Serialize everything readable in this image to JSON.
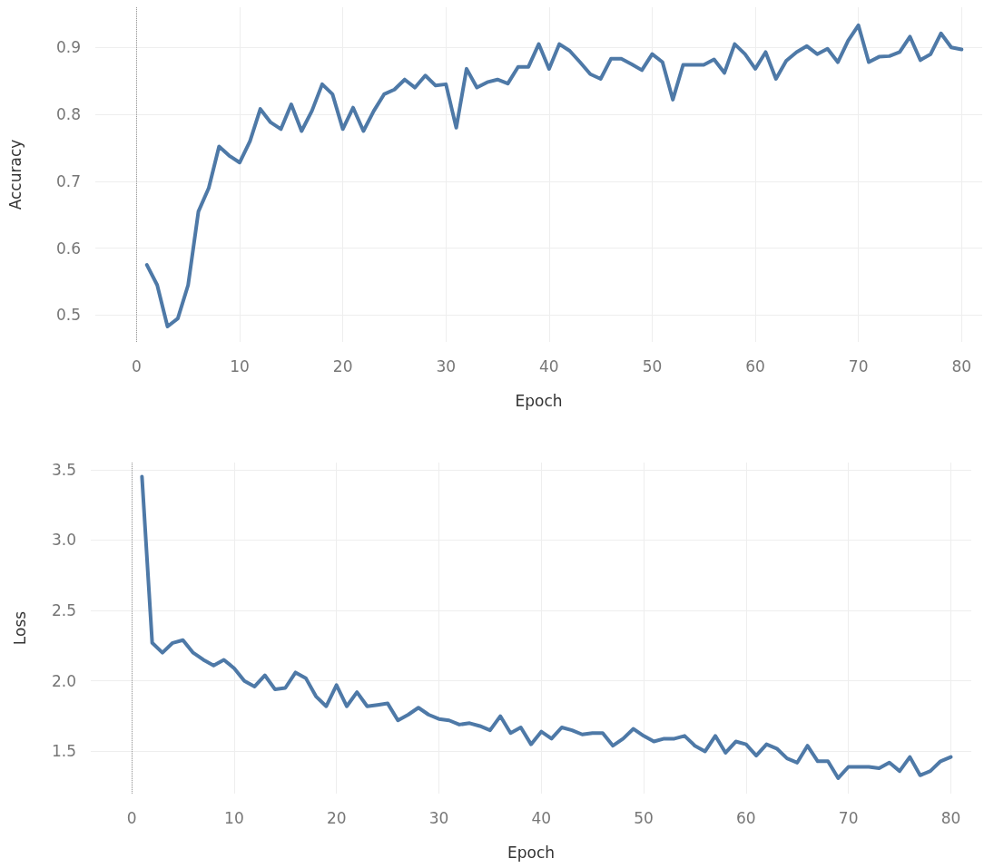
{
  "chart_data": [
    {
      "type": "line",
      "xlabel": "Epoch",
      "ylabel": "Accuracy",
      "grid": true,
      "line_style": "solid",
      "marker": "none",
      "x": [
        1,
        2,
        3,
        4,
        5,
        6,
        7,
        8,
        9,
        10,
        11,
        12,
        13,
        14,
        15,
        16,
        17,
        18,
        19,
        20,
        21,
        22,
        23,
        24,
        25,
        26,
        27,
        28,
        29,
        30,
        31,
        32,
        33,
        34,
        35,
        36,
        37,
        38,
        39,
        40,
        41,
        42,
        43,
        44,
        45,
        46,
        47,
        48,
        49,
        50,
        51,
        52,
        53,
        54,
        55,
        56,
        57,
        58,
        59,
        60,
        61,
        62,
        63,
        64,
        65,
        66,
        67,
        68,
        69,
        70,
        71,
        72,
        73,
        74,
        75,
        76,
        77,
        78,
        79,
        80
      ],
      "series": [
        {
          "color": "#4e79a7",
          "values": [
            0.575,
            0.545,
            0.483,
            0.495,
            0.545,
            0.655,
            0.69,
            0.752,
            0.738,
            0.728,
            0.76,
            0.808,
            0.788,
            0.778,
            0.815,
            0.775,
            0.805,
            0.845,
            0.83,
            0.778,
            0.81,
            0.775,
            0.805,
            0.83,
            0.837,
            0.852,
            0.84,
            0.858,
            0.843,
            0.845,
            0.78,
            0.868,
            0.84,
            0.848,
            0.852,
            0.846,
            0.871,
            0.871,
            0.905,
            0.868,
            0.905,
            0.895,
            0.878,
            0.86,
            0.853,
            0.883,
            0.883,
            0.875,
            0.866,
            0.89,
            0.878,
            0.822,
            0.874,
            0.874,
            0.874,
            0.882,
            0.862,
            0.905,
            0.89,
            0.868,
            0.893,
            0.853,
            0.88,
            0.893,
            0.902,
            0.89,
            0.898,
            0.878,
            0.91,
            0.933,
            0.878,
            0.886,
            0.887,
            0.893,
            0.916,
            0.881,
            0.89,
            0.921,
            0.9,
            0.897
          ]
        }
      ],
      "xlim": [
        -4,
        82
      ],
      "xticks": [
        0,
        10,
        20,
        30,
        40,
        50,
        60,
        70,
        80
      ],
      "ylim": [
        0.46,
        0.96
      ],
      "yticks": [
        0.5,
        0.6,
        0.7,
        0.8,
        0.9
      ],
      "ref_lines": [
        {
          "axis": "x",
          "value": 0,
          "color": "#999999",
          "line_style": "dotted"
        }
      ]
    },
    {
      "type": "line",
      "xlabel": "Epoch",
      "ylabel": "Loss",
      "grid": true,
      "line_style": "solid",
      "marker": "none",
      "x": [
        1,
        2,
        3,
        4,
        5,
        6,
        7,
        8,
        9,
        10,
        11,
        12,
        13,
        14,
        15,
        16,
        17,
        18,
        19,
        20,
        21,
        22,
        23,
        24,
        25,
        26,
        27,
        28,
        29,
        30,
        31,
        32,
        33,
        34,
        35,
        36,
        37,
        38,
        39,
        40,
        41,
        42,
        43,
        44,
        45,
        46,
        47,
        48,
        49,
        50,
        51,
        52,
        53,
        54,
        55,
        56,
        57,
        58,
        59,
        60,
        61,
        62,
        63,
        64,
        65,
        66,
        67,
        68,
        69,
        70,
        71,
        72,
        73,
        74,
        75,
        76,
        77,
        78,
        79,
        80
      ],
      "series": [
        {
          "color": "#4e79a7",
          "values": [
            3.45,
            2.27,
            2.2,
            2.27,
            2.29,
            2.2,
            2.15,
            2.11,
            2.15,
            2.09,
            2.0,
            1.96,
            2.04,
            1.94,
            1.95,
            2.06,
            2.02,
            1.89,
            1.82,
            1.97,
            1.82,
            1.92,
            1.82,
            1.83,
            1.84,
            1.72,
            1.76,
            1.81,
            1.76,
            1.73,
            1.72,
            1.69,
            1.7,
            1.68,
            1.65,
            1.75,
            1.63,
            1.67,
            1.55,
            1.64,
            1.59,
            1.67,
            1.65,
            1.62,
            1.63,
            1.63,
            1.54,
            1.59,
            1.66,
            1.61,
            1.57,
            1.59,
            1.59,
            1.61,
            1.54,
            1.5,
            1.61,
            1.49,
            1.57,
            1.55,
            1.47,
            1.55,
            1.52,
            1.45,
            1.42,
            1.54,
            1.43,
            1.43,
            1.31,
            1.39,
            1.39,
            1.39,
            1.38,
            1.42,
            1.36,
            1.46,
            1.33,
            1.36,
            1.43,
            1.46
          ]
        }
      ],
      "xlim": [
        -4,
        82
      ],
      "xticks": [
        0,
        10,
        20,
        30,
        40,
        50,
        60,
        70,
        80
      ],
      "ylim": [
        1.2,
        3.55
      ],
      "yticks": [
        {
          "value": 1.5,
          "label": "1.5"
        },
        {
          "value": 2,
          "label": "2.0"
        },
        {
          "value": 2.5,
          "label": "2.5"
        },
        {
          "value": 3,
          "label": "3.0"
        },
        {
          "value": 3.5,
          "label": "3.5"
        }
      ],
      "ref_lines": [
        {
          "axis": "x",
          "value": 0,
          "color": "#999999",
          "line_style": "dotted"
        }
      ]
    }
  ]
}
